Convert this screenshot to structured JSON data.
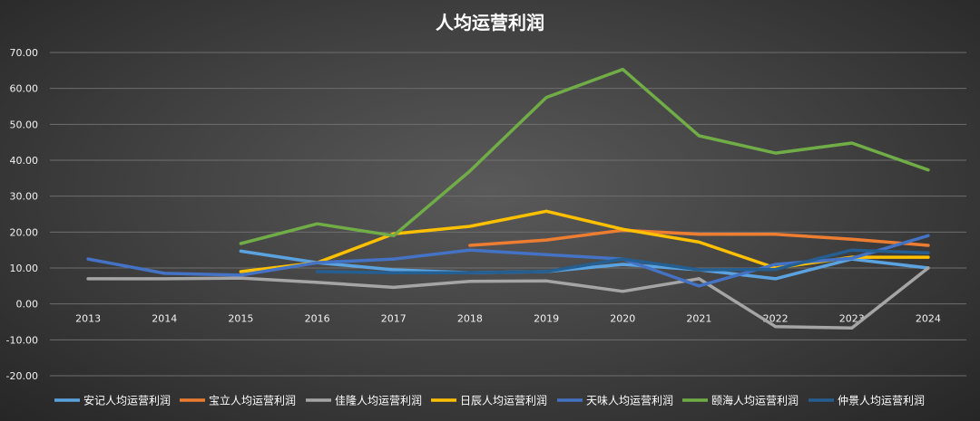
{
  "chart_data": {
    "type": "line",
    "title": "人均运营利润",
    "xlabel": "",
    "ylabel": "",
    "ylim": [
      -20,
      70
    ],
    "y_ticks": [
      "-20.00",
      "-10.00",
      "0.00",
      "10.00",
      "20.00",
      "30.00",
      "40.00",
      "50.00",
      "60.00",
      "70.00"
    ],
    "categories": [
      "2013",
      "2014",
      "2015",
      "2016",
      "2017",
      "2018",
      "2019",
      "2020",
      "2021",
      "2022",
      "2023",
      "2024"
    ],
    "grid": true,
    "legend_position": "bottom",
    "series": [
      {
        "name": "安记人均运营利润",
        "color": "#5ba3e0",
        "values": [
          null,
          null,
          14.7,
          11.5,
          9.5,
          8.7,
          9.0,
          11.0,
          9.5,
          7.0,
          12.5,
          10.0
        ]
      },
      {
        "name": "宝立人均运营利润",
        "color": "#ed7d31",
        "values": [
          null,
          null,
          null,
          null,
          null,
          16.3,
          17.8,
          20.5,
          19.4,
          19.4,
          18.0,
          16.3
        ]
      },
      {
        "name": "佳隆人均运营利润",
        "color": "#a5a5a5",
        "values": [
          7.0,
          7.0,
          7.2,
          6.0,
          4.6,
          6.3,
          6.4,
          3.5,
          7.0,
          -6.3,
          -6.7,
          10.0
        ]
      },
      {
        "name": "日辰人均运营利润",
        "color": "#ffc000",
        "values": [
          null,
          null,
          9.0,
          11.5,
          19.5,
          21.6,
          25.8,
          20.8,
          17.2,
          10.0,
          13.0,
          13.0
        ]
      },
      {
        "name": "天味人均运营利润",
        "color": "#4472c4",
        "values": [
          12.5,
          8.5,
          8.0,
          11.5,
          12.5,
          15.0,
          13.7,
          12.5,
          5.0,
          11.0,
          12.7,
          19.0
        ]
      },
      {
        "name": "颐海人均运营利润",
        "color": "#70ad47",
        "values": [
          null,
          null,
          16.8,
          22.3,
          19.0,
          37.0,
          57.5,
          65.3,
          46.8,
          42.0,
          44.8,
          37.3
        ]
      },
      {
        "name": "仲景人均运营利润",
        "color": "#255e91",
        "values": [
          null,
          null,
          null,
          9.0,
          8.7,
          8.7,
          9.0,
          12.5,
          9.5,
          9.6,
          15.0,
          14.2
        ]
      }
    ]
  }
}
